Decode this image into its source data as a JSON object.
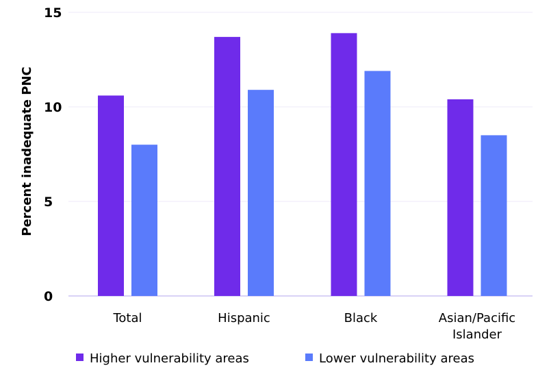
{
  "chart_data": {
    "type": "bar",
    "title": "",
    "xlabel": "",
    "ylabel": "Percent inadequate PNC",
    "ylim": [
      0,
      15
    ],
    "yticks": [
      0,
      5,
      10,
      15
    ],
    "grid": true,
    "legend_position": "bottom",
    "categories": [
      "Total",
      "Hispanic",
      "Black",
      "Asian/Pacific Islander"
    ],
    "category_lines": [
      [
        "Total"
      ],
      [
        "Hispanic"
      ],
      [
        "Black"
      ],
      [
        "Asian/Pacific",
        "Islander"
      ]
    ],
    "series": [
      {
        "name": "Higher vulnerability areas",
        "color": "#6F2BEA",
        "values": [
          10.6,
          13.7,
          13.9,
          10.4
        ]
      },
      {
        "name": "Lower vulnerability areas",
        "color": "#5A7BFB",
        "values": [
          8.0,
          10.9,
          11.9,
          8.5
        ]
      }
    ]
  }
}
